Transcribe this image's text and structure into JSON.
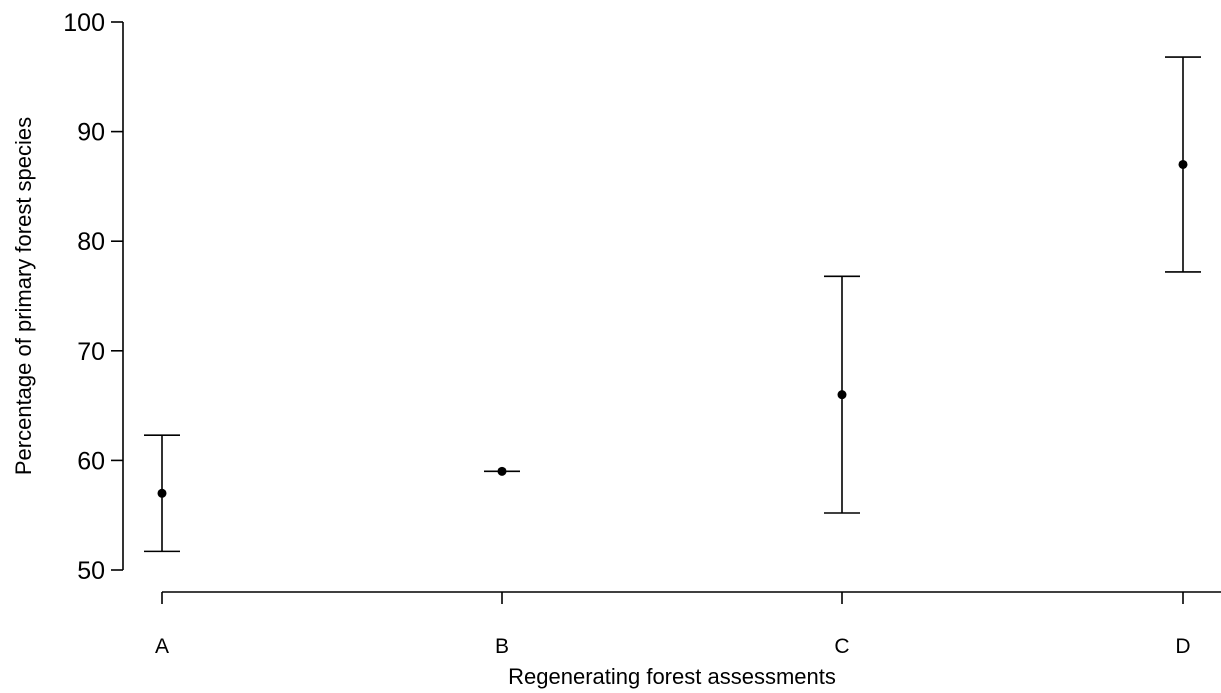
{
  "chart_data": {
    "type": "scatter",
    "title": "",
    "xlabel": "Regenerating forest assessments",
    "ylabel": "Percentage of primary forest species",
    "categories": [
      "A",
      "B",
      "C",
      "D"
    ],
    "series": [
      {
        "values": [
          57,
          59,
          66,
          87
        ],
        "lower": [
          51.7,
          59,
          55.2,
          77.2
        ],
        "upper": [
          62.3,
          59,
          76.8,
          96.8
        ]
      }
    ],
    "ylim": [
      50,
      100
    ],
    "yticks": [
      50,
      60,
      70,
      80,
      90,
      100
    ],
    "grid": false,
    "point_color": "#000000",
    "errorbar_color": "#000000"
  }
}
